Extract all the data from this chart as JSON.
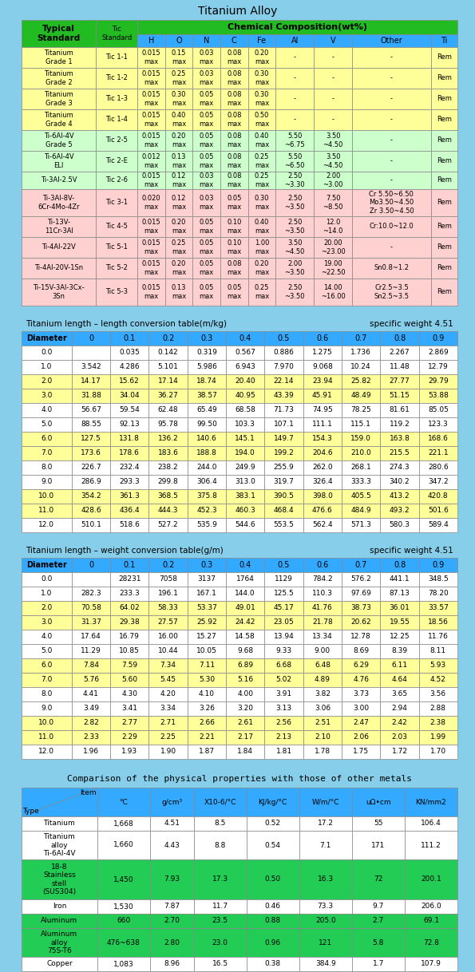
{
  "bg_color": "#87CEEB",
  "title": "Titanium Alloy",
  "header_green": "#22BB22",
  "header_blue": "#33AAFF",
  "row_yellow": "#FFFF99",
  "row_pink": "#FFD0C0",
  "row_white": "#FFFFFF",
  "row_green": "#22CC44",
  "cell_border": "#999999",
  "alloy_table": {
    "rows": [
      [
        "Titanium\nGrade 1",
        "Tic 1-1",
        "0.015\nmax",
        "0.15\nmax",
        "0.03\nmax",
        "0.08\nmax",
        "0.20\nmax",
        "-",
        "-",
        "-",
        "Rem"
      ],
      [
        "Titanium\nGrade 2",
        "Tic 1-2",
        "0.015\nmax",
        "0.25\nmax",
        "0.03\nmax",
        "0.08\nmax",
        "0.30\nmax",
        "-",
        "-",
        "-",
        "Rem"
      ],
      [
        "Titanium\nGrade 3",
        "Tic 1-3",
        "0.015\nmax",
        "0.30\nmax",
        "0.05\nmax",
        "0.08\nmax",
        "0.30\nmax",
        "-",
        "-",
        "-",
        "Rem"
      ],
      [
        "Titanium\nGrade 4",
        "Tic 1-4",
        "0.015\nmax",
        "0.40\nmax",
        "0.05\nmax",
        "0.08\nmax",
        "0.50\nmax",
        "-",
        "-",
        "-",
        "Rem"
      ],
      [
        "Ti-6Al-4V\nGrade 5",
        "Tic 2-5",
        "0.015\nmax",
        "0.20\nmax",
        "0.05\nmax",
        "0.08\nmax",
        "0.40\nmax",
        "5.50\n~6.75",
        "3.50\n~4.50",
        "-",
        "Rem"
      ],
      [
        "Ti-6Al-4V\nELI",
        "Tic 2-E",
        "0.012\nmax",
        "0.13\nmax",
        "0.05\nmax",
        "0.08\nmax",
        "0.25\nmax",
        "5.50\n~6.50",
        "3.50\n~4.50",
        "-",
        "Rem"
      ],
      [
        "Ti-3Al-2.5V",
        "Tic 2-6",
        "0.015\nmax",
        "0.12\nmax",
        "0.03\nmax",
        "0.08\nmax",
        "0.25\nmax",
        "2.50\n~3.30",
        "2.00\n~3.00",
        "-",
        "Rem"
      ],
      [
        "Ti-3Al-8V-\n6Cr-4Mo-4Zr",
        "Tic 3-1",
        "0.020\nmax",
        "0.12\nmax",
        "0.03\nmax",
        "0.05\nmax",
        "0.30\nmax",
        "2.50\n~3.50",
        "7.50\n~8.50",
        "Cr 5.50~6.50\nMo3.50~4.50\nZr 3.50~4.50",
        "Rem"
      ],
      [
        "Ti-13V-\n11Cr-3Al",
        "Tic 4-5",
        "0.015\nmax",
        "0.20\nmax",
        "0.05\nmax",
        "0.10\nmax",
        "0.40\nmax",
        "2.50\n~3.50",
        "12.0\n~14.0",
        "Cr:10.0~12.0",
        "Rem"
      ],
      [
        "Ti-4Al-22V",
        "Tic 5-1",
        "0.015\nmax",
        "0.25\nmax",
        "0.05\nmax",
        "0.10\nmax",
        "1.00\nmax",
        "3.50\n~4.50",
        "20.00\n~23.00",
        "-",
        "Rem"
      ],
      [
        "Ti-4Al-20V-1Sn",
        "Tic 5-2",
        "0.015\nmax",
        "0.20\nmax",
        "0.05\nmax",
        "0.08\nmax",
        "0.20\nmax",
        "2.00\n~3.50",
        "19.00\n~22.50",
        "Sn0.8~1.2",
        "Rem"
      ],
      [
        "Ti-15V-3Al-3Cx-\n3Sn",
        "Tic 5-3",
        "0.015\nmax",
        "0.13\nmax",
        "0.05\nmax",
        "0.05\nmax",
        "0.25\nmax",
        "2.50\n~3.50",
        "14.00\n~16.00",
        "Cr2.5~3.5\nSn2.5~3.5",
        "Rem"
      ]
    ],
    "row_colors": [
      "yellow",
      "yellow",
      "yellow",
      "yellow",
      "lightgreen",
      "lightgreen",
      "lightgreen",
      "pink",
      "pink",
      "pink",
      "pink",
      "pink"
    ]
  },
  "length_table": {
    "title": "Titanium length – length conversion table(m/kg)",
    "specific": "specific weight 4.51",
    "headers": [
      "Diameter",
      "0",
      "0.1",
      "0.2",
      "0.3",
      "0.4",
      "0.5",
      "0.6",
      "0.7",
      "0.8",
      "0.9"
    ],
    "rows": [
      [
        "0.0",
        "",
        "0.035",
        "0.142",
        "0.319",
        "0.567",
        "0.886",
        "1.275",
        "1.736",
        "2.267",
        "2.869"
      ],
      [
        "1.0",
        "3.542",
        "4.286",
        "5.101",
        "5.986",
        "6.943",
        "7.970",
        "9.068",
        "10.24",
        "11.48",
        "12.79"
      ],
      [
        "2.0",
        "14.17",
        "15.62",
        "17.14",
        "18.74",
        "20.40",
        "22.14",
        "23.94",
        "25.82",
        "27.77",
        "29.79"
      ],
      [
        "3.0",
        "31.88",
        "34.04",
        "36.27",
        "38.57",
        "40.95",
        "43.39",
        "45.91",
        "48.49",
        "51.15",
        "53.88"
      ],
      [
        "4.0",
        "56.67",
        "59.54",
        "62.48",
        "65.49",
        "68.58",
        "71.73",
        "74.95",
        "78.25",
        "81.61",
        "85.05"
      ],
      [
        "5.0",
        "88.55",
        "92.13",
        "95.78",
        "99.50",
        "103.3",
        "107.1",
        "111.1",
        "115.1",
        "119.2",
        "123.3"
      ],
      [
        "6.0",
        "127.5",
        "131.8",
        "136.2",
        "140.6",
        "145.1",
        "149.7",
        "154.3",
        "159.0",
        "163.8",
        "168.6"
      ],
      [
        "7.0",
        "173.6",
        "178.6",
        "183.6",
        "188.8",
        "194.0",
        "199.2",
        "204.6",
        "210.0",
        "215.5",
        "221.1"
      ],
      [
        "8.0",
        "226.7",
        "232.4",
        "238.2",
        "244.0",
        "249.9",
        "255.9",
        "262.0",
        "268.1",
        "274.3",
        "280.6"
      ],
      [
        "9.0",
        "286.9",
        "293.3",
        "299.8",
        "306.4",
        "313.0",
        "319.7",
        "326.4",
        "333.3",
        "340.2",
        "347.2"
      ],
      [
        "10.0",
        "354.2",
        "361.3",
        "368.5",
        "375.8",
        "383.1",
        "390.5",
        "398.0",
        "405.5",
        "413.2",
        "420.8"
      ],
      [
        "11.0",
        "428.6",
        "436.4",
        "444.3",
        "452.3",
        "460.3",
        "468.4",
        "476.6",
        "484.9",
        "493.2",
        "501.6"
      ],
      [
        "12.0",
        "510.1",
        "518.6",
        "527.2",
        "535.9",
        "544.6",
        "553.5",
        "562.4",
        "571.3",
        "580.3",
        "589.4"
      ]
    ],
    "row_colors": [
      "white",
      "white",
      "yellow",
      "yellow",
      "white",
      "white",
      "yellow",
      "yellow",
      "white",
      "white",
      "yellow",
      "yellow",
      "white"
    ]
  },
  "weight_table": {
    "title": "Titanium length – weight conversion table(g/m)",
    "specific": "specific weight 4.51",
    "headers": [
      "Diameter",
      "0",
      "0.1",
      "0.2",
      "0.3",
      "0.4",
      "0.5",
      "0.6",
      "0.7",
      "0.8",
      "0.9"
    ],
    "rows": [
      [
        "0.0",
        "",
        "28231",
        "7058",
        "3137",
        "1764",
        "1129",
        "784.2",
        "576.2",
        "441.1",
        "348.5"
      ],
      [
        "1.0",
        "282.3",
        "233.3",
        "196.1",
        "167.1",
        "144.0",
        "125.5",
        "110.3",
        "97.69",
        "87.13",
        "78.20"
      ],
      [
        "2.0",
        "70.58",
        "64.02",
        "58.33",
        "53.37",
        "49.01",
        "45.17",
        "41.76",
        "38.73",
        "36.01",
        "33.57"
      ],
      [
        "3.0",
        "31.37",
        "29.38",
        "27.57",
        "25.92",
        "24.42",
        "23.05",
        "21.78",
        "20.62",
        "19.55",
        "18.56"
      ],
      [
        "4.0",
        "17.64",
        "16.79",
        "16.00",
        "15.27",
        "14.58",
        "13.94",
        "13.34",
        "12.78",
        "12.25",
        "11.76"
      ],
      [
        "5.0",
        "11.29",
        "10.85",
        "10.44",
        "10.05",
        "9.68",
        "9.33",
        "9.00",
        "8.69",
        "8.39",
        "8.11"
      ],
      [
        "6.0",
        "7.84",
        "7.59",
        "7.34",
        "7.11",
        "6.89",
        "6.68",
        "6.48",
        "6.29",
        "6.11",
        "5.93"
      ],
      [
        "7.0",
        "5.76",
        "5.60",
        "5.45",
        "5.30",
        "5.16",
        "5.02",
        "4.89",
        "4.76",
        "4.64",
        "4.52"
      ],
      [
        "8.0",
        "4.41",
        "4.30",
        "4.20",
        "4.10",
        "4.00",
        "3.91",
        "3.82",
        "3.73",
        "3.65",
        "3.56"
      ],
      [
        "9.0",
        "3.49",
        "3.41",
        "3.34",
        "3.26",
        "3.20",
        "3.13",
        "3.06",
        "3.00",
        "2.94",
        "2.88"
      ],
      [
        "10.0",
        "2.82",
        "2.77",
        "2.71",
        "2.66",
        "2.61",
        "2.56",
        "2.51",
        "2.47",
        "2.42",
        "2.38"
      ],
      [
        "11.0",
        "2.33",
        "2.29",
        "2.25",
        "2.21",
        "2.17",
        "2.13",
        "2.10",
        "2.06",
        "2.03",
        "1.99"
      ],
      [
        "12.0",
        "1.96",
        "1.93",
        "1.90",
        "1.87",
        "1.84",
        "1.81",
        "1.78",
        "1.75",
        "1.72",
        "1.70"
      ]
    ],
    "row_colors": [
      "white",
      "white",
      "yellow",
      "yellow",
      "white",
      "white",
      "yellow",
      "yellow",
      "white",
      "white",
      "yellow",
      "yellow",
      "white"
    ]
  },
  "physical_table": {
    "title": "Comparison of the physical properties with those of other metals",
    "headers": [
      "°C",
      "g/cm³",
      "X10-6/°C",
      "KJ/kg/°C",
      "W/m/°C",
      "uΩ•cm",
      "KN/mm2"
    ],
    "rows": [
      [
        "Titanium",
        "1,668",
        "4.51",
        "8.5",
        "0.52",
        "17.2",
        "55",
        "106.4"
      ],
      [
        "Titanium\nalloy\nTi-6Al-4V",
        "1,660",
        "4.43",
        "8.8",
        "0.54",
        "7.1",
        "171",
        "111.2"
      ],
      [
        "18-8\nStainless\nstell\n(SUS304)",
        "1,450",
        "7.93",
        "17.3",
        "0.50",
        "16.3",
        "72",
        "200.1"
      ],
      [
        "Iron",
        "1,530",
        "7.87",
        "11.7",
        "0.46",
        "73.3",
        "9.7",
        "206.0"
      ],
      [
        "Aluminum",
        "660",
        "2.70",
        "23.5",
        "0.88",
        "205.0",
        "2.7",
        "69.1"
      ],
      [
        "Aluminum\nalloy\n75S-T6",
        "476~638",
        "2.80",
        "23.0",
        "0.96",
        "121",
        "5.8",
        "72.8"
      ],
      [
        "Copper",
        "1,083",
        "8.96",
        "16.5",
        "0.38",
        "384.9",
        "1.7",
        "107.9"
      ]
    ],
    "row_colors": [
      "white",
      "white",
      "green",
      "white",
      "green",
      "green",
      "white"
    ]
  }
}
